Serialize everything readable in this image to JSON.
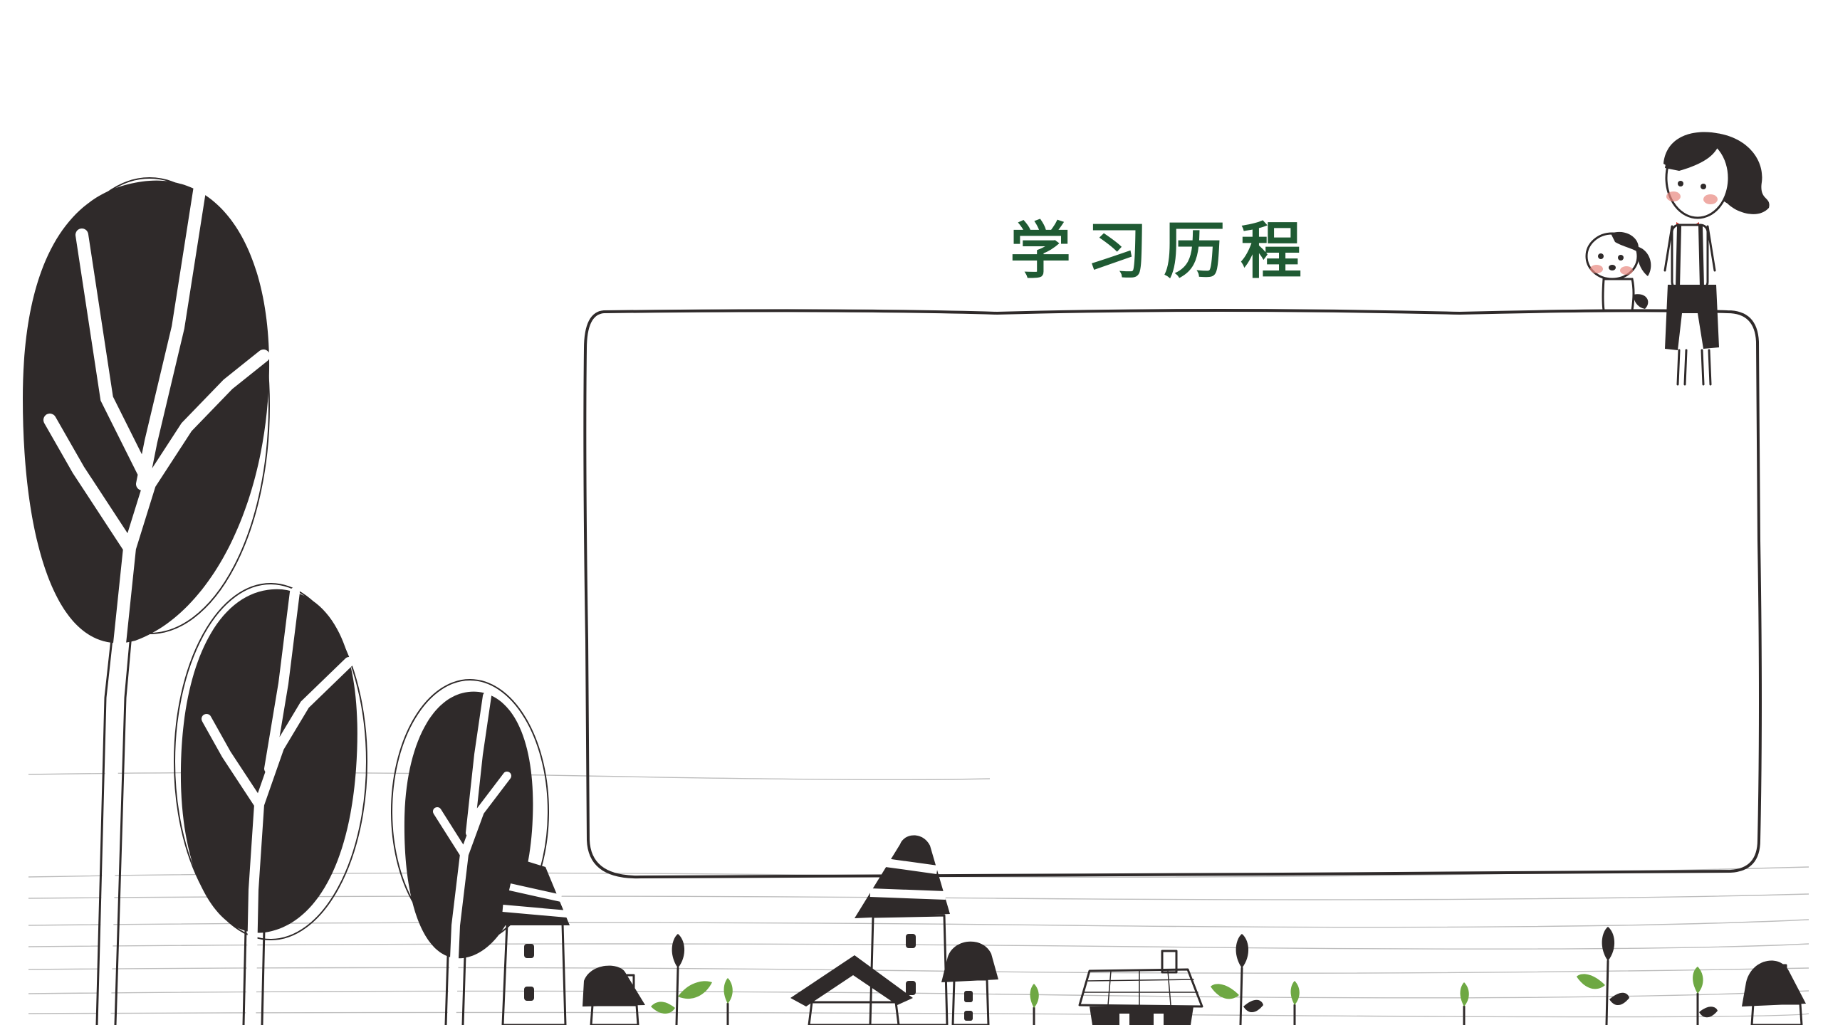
{
  "slide": {
    "title": "学习历程"
  },
  "colors": {
    "title": "#1f5a33",
    "ink": "#2f2a2a",
    "leaf": "#6ea843",
    "blush": "#e8877f",
    "bow": "#d0332b",
    "background": "#ffffff"
  },
  "illustration": {
    "tree": "tree-icon",
    "house": "house-icon",
    "sprout": "sprout-icon",
    "girl": "girl-character",
    "dog": "dog-character",
    "frame": "hand-drawn-frame"
  }
}
